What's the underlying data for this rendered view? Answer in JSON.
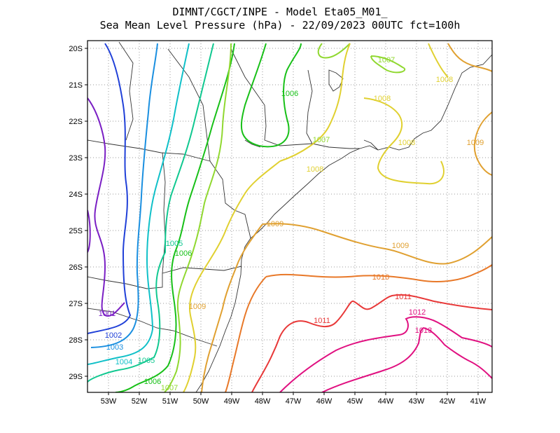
{
  "header": {
    "line1": "DIMNT/CGCT/INPE -  Model Eta05_M01_",
    "line2": "Sea Mean Level Pressure (hPa) - 22/09/2023 00UTC fct=100h"
  },
  "axes": {
    "lat_ticks": [
      "20S",
      "21S",
      "22S",
      "23S",
      "24S",
      "25S",
      "26S",
      "27S",
      "28S",
      "29S"
    ],
    "lon_ticks": [
      "53W",
      "52W",
      "51W",
      "50W",
      "49W",
      "48W",
      "47W",
      "46W",
      "45W",
      "44W",
      "43W",
      "42W",
      "41W"
    ],
    "grid": true,
    "grid_style": "dotted"
  },
  "contour_labels": [
    {
      "text": "1001",
      "color": "#7a1fc4"
    },
    {
      "text": "1002",
      "color": "#2040d8"
    },
    {
      "text": "1003",
      "color": "#1a8fe0"
    },
    {
      "text": "1004",
      "color": "#10c0c8"
    },
    {
      "text": "1005",
      "color": "#10c890"
    },
    {
      "text": "1005",
      "color": "#10c890"
    },
    {
      "text": "1006",
      "color": "#18c018"
    },
    {
      "text": "1006",
      "color": "#18c018"
    },
    {
      "text": "1006",
      "color": "#18c018"
    },
    {
      "text": "1007",
      "color": "#90d830"
    },
    {
      "text": "1007",
      "color": "#90d830"
    },
    {
      "text": "1007",
      "color": "#90d830"
    },
    {
      "text": "1008",
      "color": "#e0d030"
    },
    {
      "text": "1008",
      "color": "#e0d030"
    },
    {
      "text": "1008",
      "color": "#e0d030"
    },
    {
      "text": "1008",
      "color": "#e0d030"
    },
    {
      "text": "1009",
      "color": "#e0a030"
    },
    {
      "text": "1009",
      "color": "#e0a030"
    },
    {
      "text": "1009",
      "color": "#e0a030"
    },
    {
      "text": "1009",
      "color": "#e0a030"
    },
    {
      "text": "1010",
      "color": "#e87828"
    },
    {
      "text": "1011",
      "color": "#e83838"
    },
    {
      "text": "1011",
      "color": "#e83838"
    },
    {
      "text": "1012",
      "color": "#e01080"
    },
    {
      "text": "1013",
      "color": "#e01080"
    }
  ],
  "colors": {
    "c1001": "#7a1fc4",
    "c1002": "#2040d8",
    "c1003": "#1a8fe0",
    "c1004": "#10c0c8",
    "c1005": "#10c890",
    "c1006": "#18c018",
    "c1007": "#90d830",
    "c1008": "#e0d030",
    "c1009": "#e0a030",
    "c1010": "#e87828",
    "c1011": "#e83838",
    "c1012": "#e01080",
    "c1013": "#e01080"
  }
}
